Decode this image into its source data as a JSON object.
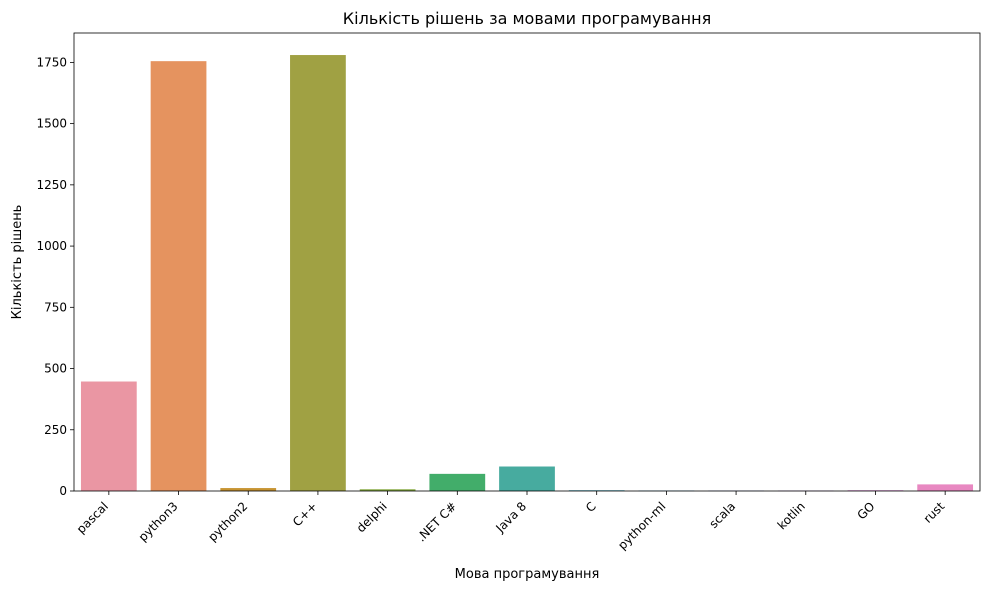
{
  "chart_data": {
    "type": "bar",
    "title": "Кількість рішень за мовами програмування",
    "xlabel": "Мова програмування",
    "ylabel": "Кількість рішень",
    "categories": [
      "pascal",
      "python3",
      "python2",
      "C++",
      "delphi",
      ".NET C#",
      "Java 8",
      "C",
      "python-ml",
      "scala",
      "kotlin",
      "GO",
      "rust"
    ],
    "values": [
      447,
      1755,
      12,
      1780,
      7,
      70,
      100,
      3,
      2,
      2,
      2,
      3,
      27
    ],
    "colors": [
      "#ea96a3",
      "#e5935f",
      "#c79432",
      "#a0a143",
      "#83a73c",
      "#42ad6a",
      "#47ab9f",
      "#44a7bd",
      "#4fa2d6",
      "#8b9ae2",
      "#bd8be3",
      "#e084d6",
      "#e888c1"
    ],
    "ylim": [
      0,
      1870
    ],
    "yticks": [
      0,
      250,
      500,
      750,
      1000,
      1250,
      1500,
      1750
    ],
    "grid": false,
    "legend": "none"
  }
}
